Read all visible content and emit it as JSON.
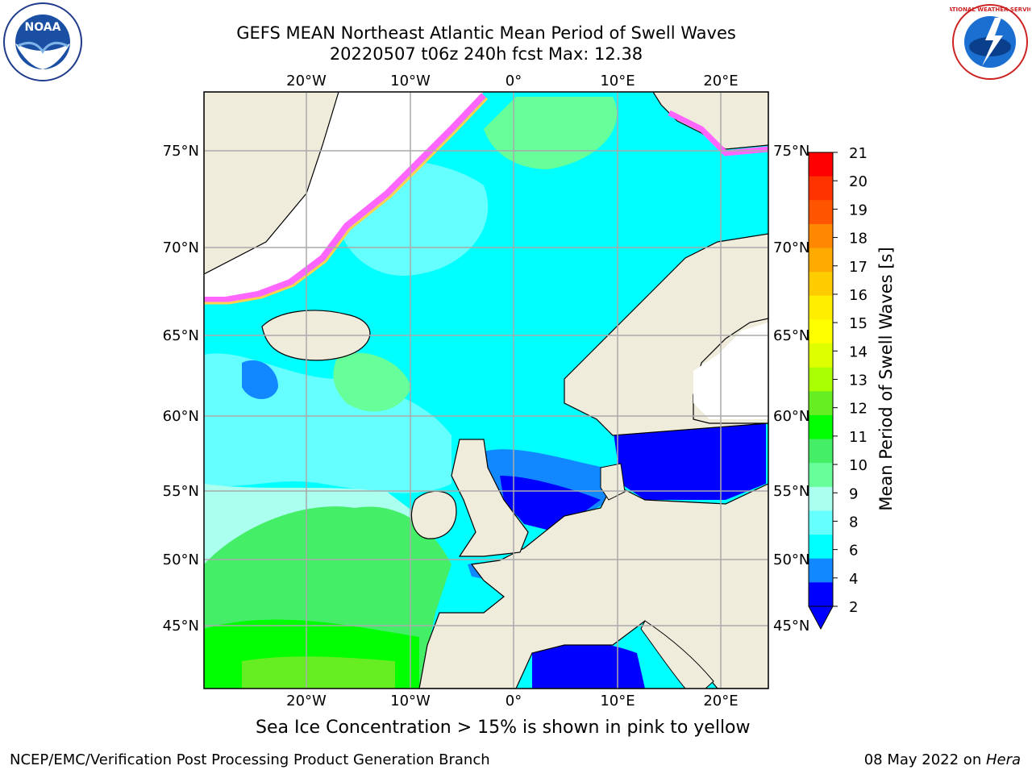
{
  "header": {
    "title_line1": "GEFS MEAN Northeast Atlantic Mean Period of Swell Waves",
    "title_line2": "20220507 t06z 240h fcst   Max: 12.38"
  },
  "logos": {
    "left": {
      "name": "noaa-logo",
      "text": "NOAA"
    },
    "right": {
      "name": "nws-logo",
      "text": "NATIONAL WEATHER SERVICE"
    }
  },
  "map": {
    "lon_ticks": [
      "20°W",
      "10°W",
      "0°",
      "10°E",
      "20°E"
    ],
    "lat_ticks": [
      "75°N",
      "70°N",
      "65°N",
      "60°N",
      "55°N",
      "50°N",
      "45°N"
    ],
    "colors": {
      "land": "#efecdc",
      "ocean_default": "#00ffff",
      "ice_pink": "#ff66ff",
      "ice_yellow": "#ffd24d"
    }
  },
  "colorbar": {
    "label": "Mean Period of Swell Waves [s]",
    "ticks": [
      "21",
      "20",
      "19",
      "18",
      "17",
      "16",
      "15",
      "14",
      "13",
      "12",
      "11",
      "10",
      "9",
      "8",
      "6",
      "4",
      "2"
    ],
    "colors": [
      "#ff0000",
      "#ff3300",
      "#ff5500",
      "#ff8800",
      "#ffaa00",
      "#ffcc00",
      "#ffee00",
      "#ffff00",
      "#ddff00",
      "#aaff00",
      "#66ee22",
      "#00ff00",
      "#44ee66",
      "#66ff99",
      "#aaffee",
      "#66ffff",
      "#00ffff",
      "#1188ff",
      "#0000ff"
    ]
  },
  "caption": "Sea Ice Concentration > 15% is shown in pink to yellow",
  "footer": {
    "left": "NCEP/EMC/Verification Post Processing Product Generation Branch",
    "right_date": "08 May 2022 on ",
    "right_machine": "Hera"
  }
}
